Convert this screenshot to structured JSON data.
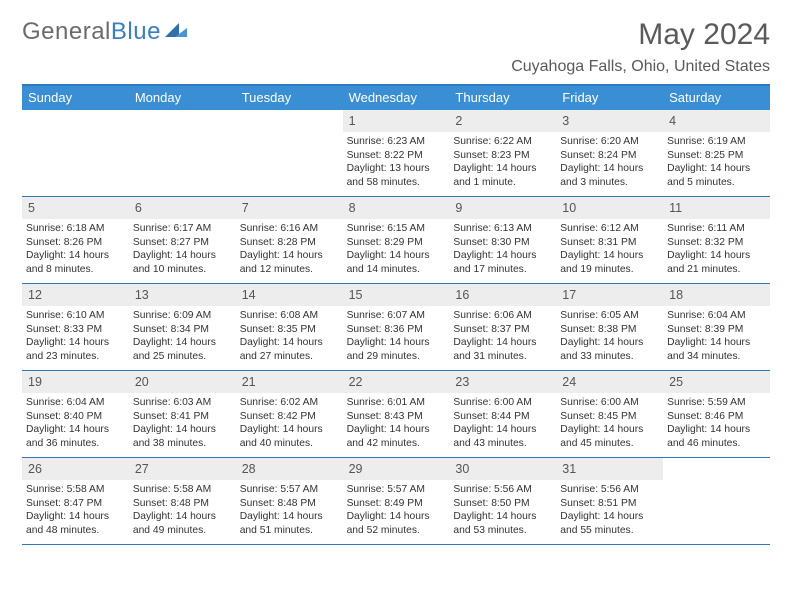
{
  "logo": {
    "part1": "General",
    "part2": "Blue"
  },
  "title": "May 2024",
  "location": "Cuyahoga Falls, Ohio, United States",
  "colors": {
    "header_bg": "#3a8fd4",
    "header_border": "#2f78bd",
    "daynum_bg": "#ededed",
    "title_color": "#5a5a5a",
    "logo_gray": "#6b6b6b",
    "logo_blue": "#3a7fc4",
    "text": "#333333"
  },
  "day_names": [
    "Sunday",
    "Monday",
    "Tuesday",
    "Wednesday",
    "Thursday",
    "Friday",
    "Saturday"
  ],
  "weeks": [
    [
      {
        "empty": true
      },
      {
        "empty": true
      },
      {
        "empty": true
      },
      {
        "day": "1",
        "sunrise": "Sunrise: 6:23 AM",
        "sunset": "Sunset: 8:22 PM",
        "daylight": "Daylight: 13 hours and 58 minutes."
      },
      {
        "day": "2",
        "sunrise": "Sunrise: 6:22 AM",
        "sunset": "Sunset: 8:23 PM",
        "daylight": "Daylight: 14 hours and 1 minute."
      },
      {
        "day": "3",
        "sunrise": "Sunrise: 6:20 AM",
        "sunset": "Sunset: 8:24 PM",
        "daylight": "Daylight: 14 hours and 3 minutes."
      },
      {
        "day": "4",
        "sunrise": "Sunrise: 6:19 AM",
        "sunset": "Sunset: 8:25 PM",
        "daylight": "Daylight: 14 hours and 5 minutes."
      }
    ],
    [
      {
        "day": "5",
        "sunrise": "Sunrise: 6:18 AM",
        "sunset": "Sunset: 8:26 PM",
        "daylight": "Daylight: 14 hours and 8 minutes."
      },
      {
        "day": "6",
        "sunrise": "Sunrise: 6:17 AM",
        "sunset": "Sunset: 8:27 PM",
        "daylight": "Daylight: 14 hours and 10 minutes."
      },
      {
        "day": "7",
        "sunrise": "Sunrise: 6:16 AM",
        "sunset": "Sunset: 8:28 PM",
        "daylight": "Daylight: 14 hours and 12 minutes."
      },
      {
        "day": "8",
        "sunrise": "Sunrise: 6:15 AM",
        "sunset": "Sunset: 8:29 PM",
        "daylight": "Daylight: 14 hours and 14 minutes."
      },
      {
        "day": "9",
        "sunrise": "Sunrise: 6:13 AM",
        "sunset": "Sunset: 8:30 PM",
        "daylight": "Daylight: 14 hours and 17 minutes."
      },
      {
        "day": "10",
        "sunrise": "Sunrise: 6:12 AM",
        "sunset": "Sunset: 8:31 PM",
        "daylight": "Daylight: 14 hours and 19 minutes."
      },
      {
        "day": "11",
        "sunrise": "Sunrise: 6:11 AM",
        "sunset": "Sunset: 8:32 PM",
        "daylight": "Daylight: 14 hours and 21 minutes."
      }
    ],
    [
      {
        "day": "12",
        "sunrise": "Sunrise: 6:10 AM",
        "sunset": "Sunset: 8:33 PM",
        "daylight": "Daylight: 14 hours and 23 minutes."
      },
      {
        "day": "13",
        "sunrise": "Sunrise: 6:09 AM",
        "sunset": "Sunset: 8:34 PM",
        "daylight": "Daylight: 14 hours and 25 minutes."
      },
      {
        "day": "14",
        "sunrise": "Sunrise: 6:08 AM",
        "sunset": "Sunset: 8:35 PM",
        "daylight": "Daylight: 14 hours and 27 minutes."
      },
      {
        "day": "15",
        "sunrise": "Sunrise: 6:07 AM",
        "sunset": "Sunset: 8:36 PM",
        "daylight": "Daylight: 14 hours and 29 minutes."
      },
      {
        "day": "16",
        "sunrise": "Sunrise: 6:06 AM",
        "sunset": "Sunset: 8:37 PM",
        "daylight": "Daylight: 14 hours and 31 minutes."
      },
      {
        "day": "17",
        "sunrise": "Sunrise: 6:05 AM",
        "sunset": "Sunset: 8:38 PM",
        "daylight": "Daylight: 14 hours and 33 minutes."
      },
      {
        "day": "18",
        "sunrise": "Sunrise: 6:04 AM",
        "sunset": "Sunset: 8:39 PM",
        "daylight": "Daylight: 14 hours and 34 minutes."
      }
    ],
    [
      {
        "day": "19",
        "sunrise": "Sunrise: 6:04 AM",
        "sunset": "Sunset: 8:40 PM",
        "daylight": "Daylight: 14 hours and 36 minutes."
      },
      {
        "day": "20",
        "sunrise": "Sunrise: 6:03 AM",
        "sunset": "Sunset: 8:41 PM",
        "daylight": "Daylight: 14 hours and 38 minutes."
      },
      {
        "day": "21",
        "sunrise": "Sunrise: 6:02 AM",
        "sunset": "Sunset: 8:42 PM",
        "daylight": "Daylight: 14 hours and 40 minutes."
      },
      {
        "day": "22",
        "sunrise": "Sunrise: 6:01 AM",
        "sunset": "Sunset: 8:43 PM",
        "daylight": "Daylight: 14 hours and 42 minutes."
      },
      {
        "day": "23",
        "sunrise": "Sunrise: 6:00 AM",
        "sunset": "Sunset: 8:44 PM",
        "daylight": "Daylight: 14 hours and 43 minutes."
      },
      {
        "day": "24",
        "sunrise": "Sunrise: 6:00 AM",
        "sunset": "Sunset: 8:45 PM",
        "daylight": "Daylight: 14 hours and 45 minutes."
      },
      {
        "day": "25",
        "sunrise": "Sunrise: 5:59 AM",
        "sunset": "Sunset: 8:46 PM",
        "daylight": "Daylight: 14 hours and 46 minutes."
      }
    ],
    [
      {
        "day": "26",
        "sunrise": "Sunrise: 5:58 AM",
        "sunset": "Sunset: 8:47 PM",
        "daylight": "Daylight: 14 hours and 48 minutes."
      },
      {
        "day": "27",
        "sunrise": "Sunrise: 5:58 AM",
        "sunset": "Sunset: 8:48 PM",
        "daylight": "Daylight: 14 hours and 49 minutes."
      },
      {
        "day": "28",
        "sunrise": "Sunrise: 5:57 AM",
        "sunset": "Sunset: 8:48 PM",
        "daylight": "Daylight: 14 hours and 51 minutes."
      },
      {
        "day": "29",
        "sunrise": "Sunrise: 5:57 AM",
        "sunset": "Sunset: 8:49 PM",
        "daylight": "Daylight: 14 hours and 52 minutes."
      },
      {
        "day": "30",
        "sunrise": "Sunrise: 5:56 AM",
        "sunset": "Sunset: 8:50 PM",
        "daylight": "Daylight: 14 hours and 53 minutes."
      },
      {
        "day": "31",
        "sunrise": "Sunrise: 5:56 AM",
        "sunset": "Sunset: 8:51 PM",
        "daylight": "Daylight: 14 hours and 55 minutes."
      },
      {
        "empty": true
      }
    ]
  ]
}
